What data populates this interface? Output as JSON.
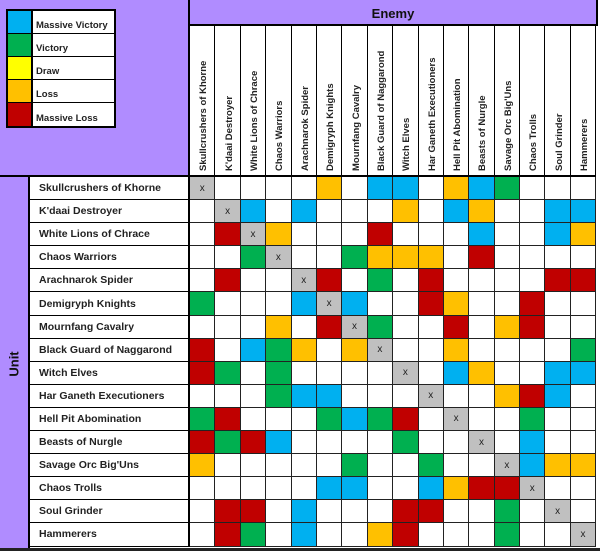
{
  "colors": {
    "MV": "#00b0f0",
    "V": "#00b050",
    "D": "#ffff00",
    "L": "#ffc000",
    "ML": "#c00000",
    "X": "#c0c0c0",
    "E": "#ffffff",
    "header_bg": "#b08cff"
  },
  "legend": [
    {
      "code": "MV",
      "label": "Massive Victory"
    },
    {
      "code": "V",
      "label": "Victory"
    },
    {
      "code": "D",
      "label": "Draw"
    },
    {
      "code": "L",
      "label": "Loss"
    },
    {
      "code": "ML",
      "label": "Massive Loss"
    }
  ],
  "axis": {
    "enemy_label": "Enemy",
    "unit_label": "Unit"
  },
  "units": [
    "Skullcrushers of Khorne",
    "K'daai Destroyer",
    "White Lions of Chrace",
    "Chaos Warriors",
    "Arachnarok Spider",
    "Demigryph Knights",
    "Mournfang Cavalry",
    "Black Guard of Naggarond",
    "Witch Elves",
    "Har Ganeth Executioners",
    "Hell Pit Abomination",
    "Beasts of Nurgle",
    "Savage Orc Big'Uns",
    "Chaos Trolls",
    "Soul Grinder",
    "Hammerers"
  ],
  "self_marker": "x",
  "matrix": [
    [
      "X",
      "E",
      "E",
      "E",
      "E",
      "L",
      "E",
      "MV",
      "MV",
      "E",
      "L",
      "MV",
      "V",
      "E",
      "E",
      "E"
    ],
    [
      "E",
      "X",
      "MV",
      "E",
      "MV",
      "E",
      "E",
      "E",
      "L",
      "E",
      "MV",
      "L",
      "E",
      "E",
      "MV",
      "MV"
    ],
    [
      "E",
      "ML",
      "X",
      "L",
      "E",
      "E",
      "E",
      "ML",
      "E",
      "E",
      "E",
      "MV",
      "E",
      "E",
      "MV",
      "L"
    ],
    [
      "E",
      "E",
      "V",
      "X",
      "E",
      "E",
      "V",
      "L",
      "L",
      "L",
      "E",
      "ML",
      "E",
      "E",
      "E",
      "E"
    ],
    [
      "E",
      "ML",
      "E",
      "E",
      "X",
      "ML",
      "E",
      "V",
      "E",
      "ML",
      "E",
      "E",
      "E",
      "E",
      "ML",
      "ML"
    ],
    [
      "V",
      "E",
      "E",
      "E",
      "MV",
      "X",
      "MV",
      "E",
      "E",
      "ML",
      "L",
      "E",
      "E",
      "ML",
      "E",
      "E"
    ],
    [
      "E",
      "E",
      "E",
      "L",
      "E",
      "ML",
      "X",
      "V",
      "E",
      "E",
      "ML",
      "E",
      "L",
      "ML",
      "E",
      "E"
    ],
    [
      "ML",
      "E",
      "MV",
      "V",
      "L",
      "E",
      "L",
      "X",
      "E",
      "E",
      "L",
      "E",
      "E",
      "E",
      "E",
      "V"
    ],
    [
      "ML",
      "V",
      "E",
      "V",
      "E",
      "E",
      "E",
      "E",
      "X",
      "E",
      "MV",
      "L",
      "E",
      "E",
      "MV",
      "MV"
    ],
    [
      "E",
      "E",
      "E",
      "V",
      "MV",
      "MV",
      "E",
      "E",
      "E",
      "X",
      "E",
      "E",
      "L",
      "ML",
      "MV",
      "E"
    ],
    [
      "V",
      "ML",
      "E",
      "E",
      "E",
      "V",
      "MV",
      "V",
      "ML",
      "E",
      "X",
      "E",
      "E",
      "V",
      "E",
      "E"
    ],
    [
      "ML",
      "V",
      "ML",
      "MV",
      "E",
      "E",
      "E",
      "E",
      "V",
      "E",
      "E",
      "X",
      "E",
      "MV",
      "E",
      "E"
    ],
    [
      "L",
      "E",
      "E",
      "E",
      "E",
      "E",
      "V",
      "E",
      "E",
      "V",
      "E",
      "E",
      "X",
      "MV",
      "L",
      "L"
    ],
    [
      "E",
      "E",
      "E",
      "E",
      "E",
      "MV",
      "MV",
      "E",
      "E",
      "MV",
      "L",
      "ML",
      "ML",
      "X",
      "E",
      "E"
    ],
    [
      "E",
      "ML",
      "ML",
      "E",
      "MV",
      "E",
      "E",
      "E",
      "ML",
      "ML",
      "E",
      "E",
      "V",
      "E",
      "X",
      "E"
    ],
    [
      "E",
      "ML",
      "V",
      "E",
      "MV",
      "E",
      "E",
      "L",
      "ML",
      "E",
      "E",
      "E",
      "V",
      "E",
      "E",
      "X"
    ]
  ]
}
